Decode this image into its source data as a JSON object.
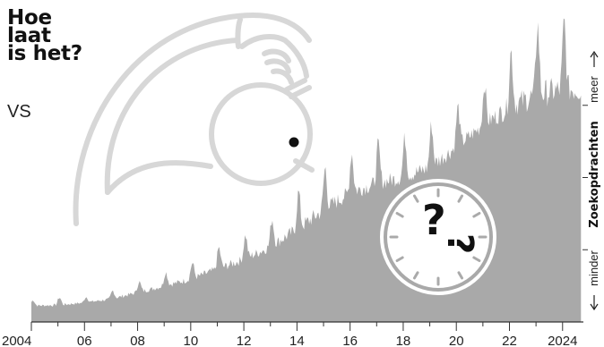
{
  "title_lines": [
    "Hoe",
    "laat",
    "is het?"
  ],
  "subtitle": "VS",
  "colors": {
    "area": "#a9a9a9",
    "illustration": "#d7d7d7",
    "text": "#111111",
    "axis": "#333333"
  },
  "chart_data": {
    "type": "area",
    "title": "Hoe laat is het?",
    "subtitle": "VS",
    "xlabel": "",
    "ylabel": "Zoekopdrachten",
    "ylabel_high": "meer",
    "ylabel_low": "minder",
    "x_ticks": [
      "2004",
      "06",
      "08",
      "10",
      "12",
      "14",
      "16",
      "18",
      "20",
      "22",
      "2024"
    ],
    "xlim": [
      2004,
      2024.75
    ],
    "ylim": [
      0,
      100
    ],
    "series": [
      {
        "values_per_year": [
          {
            "year": 2004,
            "base": 5,
            "peak": 7
          },
          {
            "year": 2005,
            "base": 5,
            "peak": 8
          },
          {
            "year": 2006,
            "base": 6,
            "peak": 8
          },
          {
            "year": 2007,
            "base": 7,
            "peak": 10
          },
          {
            "year": 2008,
            "base": 9,
            "peak": 13
          },
          {
            "year": 2009,
            "base": 11,
            "peak": 16
          },
          {
            "year": 2010,
            "base": 13,
            "peak": 19
          },
          {
            "year": 2011,
            "base": 16,
            "peak": 24
          },
          {
            "year": 2012,
            "base": 19,
            "peak": 28
          },
          {
            "year": 2013,
            "base": 23,
            "peak": 33
          },
          {
            "year": 2014,
            "base": 28,
            "peak": 42
          },
          {
            "year": 2015,
            "base": 34,
            "peak": 50
          },
          {
            "year": 2016,
            "base": 40,
            "peak": 55
          },
          {
            "year": 2017,
            "base": 43,
            "peak": 58
          },
          {
            "year": 2018,
            "base": 45,
            "peak": 60
          },
          {
            "year": 2019,
            "base": 48,
            "peak": 64
          },
          {
            "year": 2020,
            "base": 55,
            "peak": 70
          },
          {
            "year": 2021,
            "base": 62,
            "peak": 77
          },
          {
            "year": 2022,
            "base": 67,
            "peak": 88
          },
          {
            "year": 2023,
            "base": 70,
            "peak": 97
          },
          {
            "year": 2024,
            "base": 72,
            "peak": 98
          }
        ]
      }
    ]
  }
}
